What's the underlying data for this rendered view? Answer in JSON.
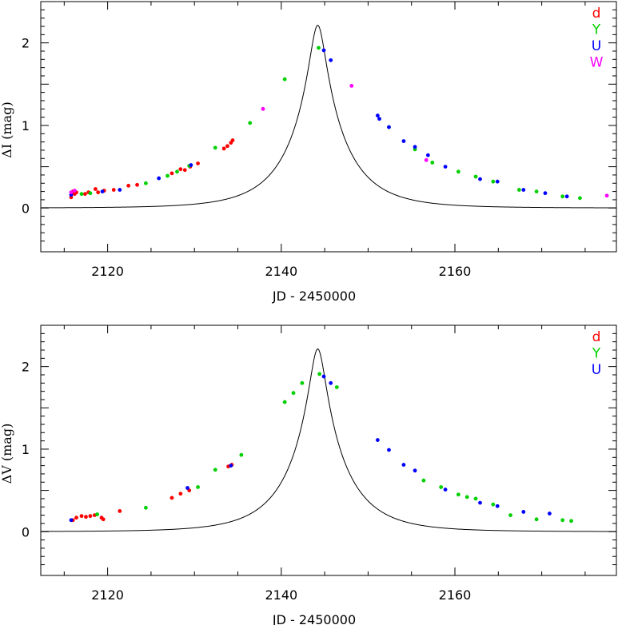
{
  "chart_data": [
    {
      "type": "scatter",
      "ylabel": "ΔI (mag)",
      "xlabel": "JD - 2450000",
      "xlim": [
        2112.3,
        2178.6
      ],
      "ylim": [
        -0.53,
        2.5
      ],
      "xticks": [
        2120,
        2140,
        2160
      ],
      "yticks": [
        0,
        1,
        2
      ],
      "grid": false,
      "legend_position": "top-right",
      "model_curve": {
        "t0": 2144.2,
        "tE": 6.4,
        "u0": 0.131
      },
      "series": [
        {
          "name": "d",
          "color": "#ff0000",
          "points": [
            [
              2115.8,
              0.13
            ],
            [
              2115.9,
              0.18
            ],
            [
              2116.0,
              0.2
            ],
            [
              2116.2,
              0.17
            ],
            [
              2116.4,
              0.19
            ],
            [
              2117.4,
              0.17
            ],
            [
              2117.8,
              0.19
            ],
            [
              2118.6,
              0.23
            ],
            [
              2118.9,
              0.19
            ],
            [
              2119.6,
              0.21
            ],
            [
              2120.7,
              0.22
            ],
            [
              2122.4,
              0.27
            ],
            [
              2123.4,
              0.28
            ],
            [
              2127.4,
              0.42
            ],
            [
              2128.4,
              0.47
            ],
            [
              2128.9,
              0.46
            ],
            [
              2129.5,
              0.5
            ],
            [
              2130.4,
              0.54
            ],
            [
              2133.4,
              0.72
            ],
            [
              2133.8,
              0.75
            ],
            [
              2134.2,
              0.79
            ],
            [
              2134.4,
              0.82
            ]
          ]
        },
        {
          "name": "Y",
          "color": "#00d000",
          "points": [
            [
              2117.0,
              0.17
            ],
            [
              2118.0,
              0.18
            ],
            [
              2124.4,
              0.3
            ],
            [
              2126.9,
              0.39
            ],
            [
              2128.0,
              0.44
            ],
            [
              2129.4,
              0.51
            ],
            [
              2132.4,
              0.73
            ],
            [
              2136.4,
              1.03
            ],
            [
              2140.4,
              1.56
            ],
            [
              2144.3,
              1.94
            ],
            [
              2152.4,
              0.98
            ],
            [
              2155.4,
              0.71
            ],
            [
              2157.4,
              0.55
            ],
            [
              2160.4,
              0.44
            ],
            [
              2162.4,
              0.38
            ],
            [
              2164.4,
              0.32
            ],
            [
              2167.4,
              0.22
            ],
            [
              2169.4,
              0.2
            ],
            [
              2172.4,
              0.14
            ],
            [
              2174.4,
              0.12
            ]
          ]
        },
        {
          "name": "U",
          "color": "#0000ff",
          "points": [
            [
              2115.8,
              0.16
            ],
            [
              2119.4,
              0.2
            ],
            [
              2121.4,
              0.22
            ],
            [
              2125.9,
              0.36
            ],
            [
              2129.6,
              0.52
            ],
            [
              2144.9,
              1.91
            ],
            [
              2145.7,
              1.79
            ],
            [
              2151.1,
              1.12
            ],
            [
              2151.3,
              1.08
            ],
            [
              2152.4,
              0.98
            ],
            [
              2154.1,
              0.81
            ],
            [
              2155.4,
              0.74
            ],
            [
              2156.9,
              0.64
            ],
            [
              2158.9,
              0.5
            ],
            [
              2162.9,
              0.35
            ],
            [
              2164.9,
              0.32
            ],
            [
              2167.9,
              0.22
            ],
            [
              2170.4,
              0.18
            ],
            [
              2172.9,
              0.14
            ]
          ]
        },
        {
          "name": "W",
          "color": "#ff00ff",
          "points": [
            [
              2115.8,
              0.19
            ],
            [
              2116.2,
              0.21
            ],
            [
              2137.9,
              1.2
            ],
            [
              2148.1,
              1.48
            ],
            [
              2156.7,
              0.58
            ],
            [
              2177.5,
              0.15
            ]
          ]
        }
      ]
    },
    {
      "type": "scatter",
      "ylabel": "ΔV (mag)",
      "xlabel": "JD - 2450000",
      "xlim": [
        2112.3,
        2178.6
      ],
      "ylim": [
        -0.53,
        2.5
      ],
      "xticks": [
        2120,
        2140,
        2160
      ],
      "yticks": [
        0,
        1,
        2
      ],
      "grid": false,
      "legend_position": "top-right",
      "model_curve": {
        "t0": 2144.2,
        "tE": 6.4,
        "u0": 0.131
      },
      "series": [
        {
          "name": "d",
          "color": "#ff0000",
          "points": [
            [
              2116.0,
              0.14
            ],
            [
              2116.4,
              0.17
            ],
            [
              2117.0,
              0.19
            ],
            [
              2117.5,
              0.18
            ],
            [
              2118.0,
              0.19
            ],
            [
              2118.5,
              0.2
            ],
            [
              2119.3,
              0.17
            ],
            [
              2119.5,
              0.15
            ],
            [
              2121.4,
              0.25
            ],
            [
              2127.4,
              0.41
            ],
            [
              2128.4,
              0.46
            ],
            [
              2129.4,
              0.5
            ],
            [
              2133.9,
              0.79
            ],
            [
              2134.3,
              0.81
            ]
          ]
        },
        {
          "name": "Y",
          "color": "#00d000",
          "points": [
            [
              2118.8,
              0.21
            ],
            [
              2124.4,
              0.29
            ],
            [
              2130.4,
              0.54
            ],
            [
              2132.4,
              0.75
            ],
            [
              2135.4,
              0.93
            ],
            [
              2140.4,
              1.57
            ],
            [
              2141.4,
              1.68
            ],
            [
              2142.4,
              1.8
            ],
            [
              2144.4,
              1.91
            ],
            [
              2146.4,
              1.75
            ],
            [
              2156.4,
              0.62
            ],
            [
              2158.4,
              0.54
            ],
            [
              2160.4,
              0.45
            ],
            [
              2161.4,
              0.42
            ],
            [
              2162.4,
              0.4
            ],
            [
              2164.4,
              0.33
            ],
            [
              2166.4,
              0.2
            ],
            [
              2169.4,
              0.15
            ],
            [
              2172.4,
              0.14
            ],
            [
              2173.4,
              0.13
            ]
          ]
        },
        {
          "name": "U",
          "color": "#0000ff",
          "points": [
            [
              2115.8,
              0.14
            ],
            [
              2129.2,
              0.53
            ],
            [
              2134.2,
              0.8
            ],
            [
              2144.9,
              1.88
            ],
            [
              2145.7,
              1.8
            ],
            [
              2151.1,
              1.11
            ],
            [
              2152.4,
              0.99
            ],
            [
              2154.1,
              0.81
            ],
            [
              2155.4,
              0.74
            ],
            [
              2158.9,
              0.51
            ],
            [
              2162.9,
              0.35
            ],
            [
              2164.9,
              0.31
            ],
            [
              2167.9,
              0.24
            ],
            [
              2170.9,
              0.22
            ]
          ]
        }
      ]
    }
  ]
}
